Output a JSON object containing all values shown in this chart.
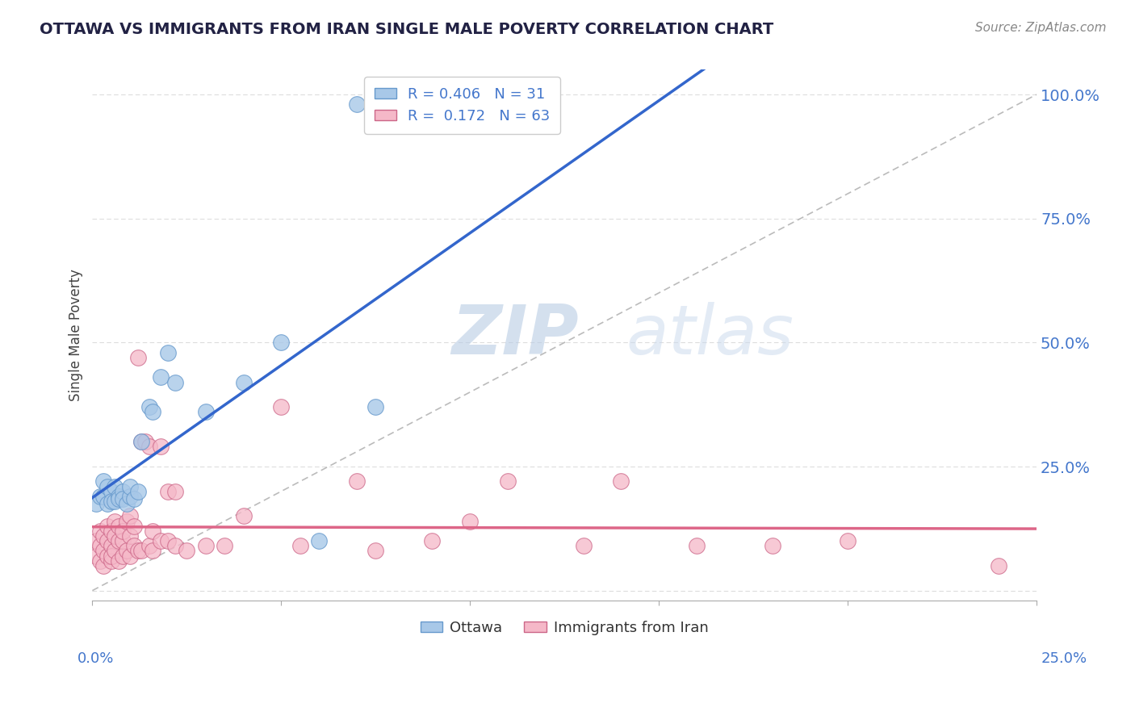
{
  "title": "OTTAWA VS IMMIGRANTS FROM IRAN SINGLE MALE POVERTY CORRELATION CHART",
  "source": "Source: ZipAtlas.com",
  "ylabel": "Single Male Poverty",
  "xlim": [
    0.0,
    0.25
  ],
  "ylim": [
    -0.02,
    1.05
  ],
  "series1_name": "Ottawa",
  "series1_color": "#a8c8e8",
  "series1_edge": "#6699cc",
  "series1_line_color": "#3366cc",
  "series2_name": "Immigrants from Iran",
  "series2_color": "#f5b8c8",
  "series2_edge": "#cc6688",
  "series2_line_color": "#dd6688",
  "watermark1": "ZIP",
  "watermark2": "atlas",
  "watermark_color1": "#b8cfe8",
  "watermark_color2": "#c8d8e8",
  "background_color": "#ffffff",
  "grid_color": "#dddddd",
  "title_color": "#222244",
  "axis_label_color": "#4477cc",
  "ottawa_points_x": [
    0.001,
    0.002,
    0.003,
    0.003,
    0.004,
    0.004,
    0.005,
    0.005,
    0.006,
    0.006,
    0.007,
    0.007,
    0.008,
    0.008,
    0.009,
    0.01,
    0.01,
    0.011,
    0.012,
    0.013,
    0.015,
    0.016,
    0.018,
    0.02,
    0.022,
    0.03,
    0.04,
    0.05,
    0.06,
    0.07,
    0.075
  ],
  "ottawa_points_y": [
    0.175,
    0.19,
    0.22,
    0.19,
    0.21,
    0.175,
    0.2,
    0.18,
    0.18,
    0.21,
    0.19,
    0.185,
    0.2,
    0.185,
    0.175,
    0.19,
    0.21,
    0.185,
    0.2,
    0.3,
    0.37,
    0.36,
    0.43,
    0.48,
    0.42,
    0.36,
    0.42,
    0.5,
    0.1,
    0.98,
    0.37
  ],
  "iran_points_x": [
    0.001,
    0.001,
    0.002,
    0.002,
    0.002,
    0.003,
    0.003,
    0.003,
    0.004,
    0.004,
    0.004,
    0.005,
    0.005,
    0.005,
    0.005,
    0.006,
    0.006,
    0.006,
    0.007,
    0.007,
    0.007,
    0.008,
    0.008,
    0.008,
    0.009,
    0.009,
    0.01,
    0.01,
    0.01,
    0.011,
    0.011,
    0.012,
    0.012,
    0.013,
    0.013,
    0.014,
    0.015,
    0.015,
    0.016,
    0.016,
    0.018,
    0.018,
    0.02,
    0.02,
    0.022,
    0.022,
    0.025,
    0.03,
    0.035,
    0.04,
    0.05,
    0.055,
    0.07,
    0.075,
    0.09,
    0.1,
    0.11,
    0.13,
    0.14,
    0.16,
    0.18,
    0.2,
    0.24
  ],
  "iran_points_y": [
    0.07,
    0.1,
    0.06,
    0.09,
    0.12,
    0.05,
    0.08,
    0.11,
    0.07,
    0.1,
    0.13,
    0.06,
    0.09,
    0.12,
    0.07,
    0.08,
    0.11,
    0.14,
    0.06,
    0.1,
    0.13,
    0.07,
    0.1,
    0.12,
    0.08,
    0.14,
    0.07,
    0.11,
    0.15,
    0.09,
    0.13,
    0.08,
    0.47,
    0.08,
    0.3,
    0.3,
    0.09,
    0.29,
    0.08,
    0.12,
    0.29,
    0.1,
    0.1,
    0.2,
    0.09,
    0.2,
    0.08,
    0.09,
    0.09,
    0.15,
    0.37,
    0.09,
    0.22,
    0.08,
    0.1,
    0.14,
    0.22,
    0.09,
    0.22,
    0.09,
    0.09,
    0.1,
    0.05
  ]
}
